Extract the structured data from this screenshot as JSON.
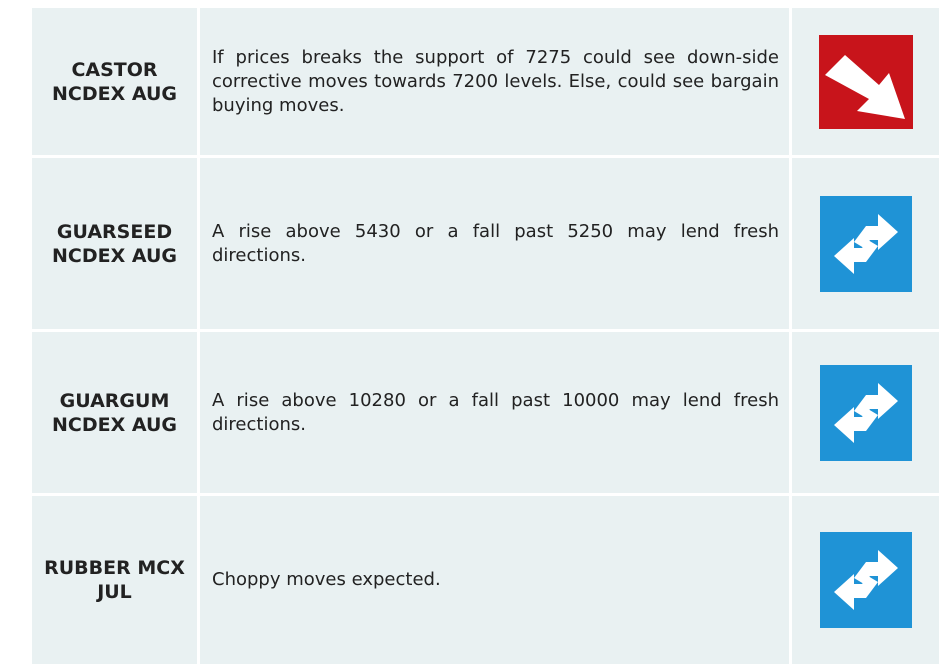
{
  "table": {
    "rows": [
      [
        "CASTOR NCDEX AUG",
        "If prices breaks the support of 7275 could see down-side corrective moves towards 7200 levels. Else, could see bargain buying moves."
      ],
      [
        "GUARSEED NCDEX AUG",
        "A rise above 5430 or a fall past 5250 may lend fresh directions."
      ],
      [
        "GUARGUM NCDEX AUG",
        "A rise above 10280 or a fall past 10000 may lend fresh directions."
      ],
      [
        "RUBBER MCX JUL",
        "Choppy moves expected."
      ]
    ]
  }
}
